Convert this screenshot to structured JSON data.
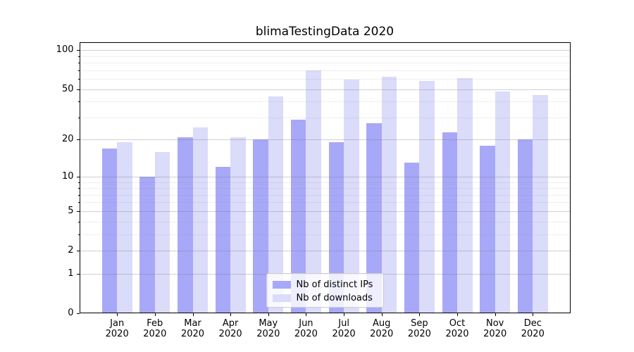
{
  "chart_data": {
    "type": "bar",
    "title": "blimaTestingData 2020",
    "categories": [
      {
        "month": "Jan",
        "year": "2020"
      },
      {
        "month": "Feb",
        "year": "2020"
      },
      {
        "month": "Mar",
        "year": "2020"
      },
      {
        "month": "Apr",
        "year": "2020"
      },
      {
        "month": "May",
        "year": "2020"
      },
      {
        "month": "Jun",
        "year": "2020"
      },
      {
        "month": "Jul",
        "year": "2020"
      },
      {
        "month": "Aug",
        "year": "2020"
      },
      {
        "month": "Sep",
        "year": "2020"
      },
      {
        "month": "Oct",
        "year": "2020"
      },
      {
        "month": "Nov",
        "year": "2020"
      },
      {
        "month": "Dec",
        "year": "2020"
      }
    ],
    "series": [
      {
        "name": "Nb of distinct IPs",
        "color": "#a8a8f8",
        "values": [
          17,
          10,
          21,
          12,
          20,
          29,
          19,
          27,
          13,
          23,
          18,
          20
        ]
      },
      {
        "name": "Nb of downloads",
        "color": "#dbdbfa",
        "values": [
          19,
          16,
          25,
          21,
          44,
          70,
          59,
          62,
          58,
          61,
          48,
          45
        ]
      }
    ],
    "xlabel": "",
    "ylabel": "",
    "yscale": "log1p",
    "ylim": [
      0,
      115
    ],
    "yticks": [
      100,
      50,
      20,
      10,
      5,
      2,
      1,
      0
    ],
    "minor_yticks": [
      3,
      4,
      6,
      7,
      8,
      9,
      30,
      40,
      60,
      70,
      80,
      90
    ],
    "grid": "on",
    "legend_position": "lower center"
  },
  "colors": {
    "background": "#ffffff",
    "spine": "#000000",
    "bar_distinct_ips": "#a8a8f8",
    "bar_downloads": "#dbdbfa",
    "grid_major": "#d1d1d1",
    "grid_minor": "#ededed"
  }
}
